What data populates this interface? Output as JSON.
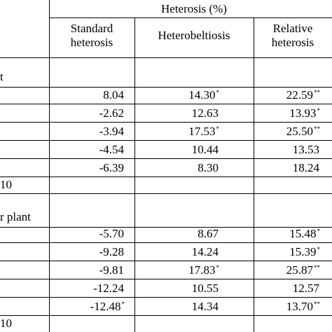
{
  "header": {
    "group": "Heterosis (%)",
    "col1": [
      "Standard",
      "heterosis"
    ],
    "col2": "Heterobeltiosis",
    "col3": [
      "Relative",
      "heterosis"
    ]
  },
  "sections": [
    {
      "label": "t",
      "rows": [
        {
          "c1": "8.04",
          "c1s": "",
          "c2": "14.30",
          "c2s": "*",
          "c3": "22.59",
          "c3s": "**"
        },
        {
          "c1": "-2.62",
          "c1s": "",
          "c2": "12.63",
          "c2s": "",
          "c3": "13.93",
          "c3s": "*"
        },
        {
          "c1": "-3.94",
          "c1s": "",
          "c2": "17.53",
          "c2s": "*",
          "c3": "25.50",
          "c3s": "**"
        },
        {
          "c1": "-4.54",
          "c1s": "",
          "c2": "10.44",
          "c2s": "",
          "c3": "13.53",
          "c3s": ""
        },
        {
          "c1": "-6.39",
          "c1s": "",
          "c2": "8.30",
          "c2s": "",
          "c3": "18.24",
          "c3s": ""
        }
      ],
      "footer": "10"
    },
    {
      "label": "r plant",
      "rows": [
        {
          "c1": "-5.70",
          "c1s": "",
          "c2": "8.67",
          "c2s": "",
          "c3": "15.48",
          "c3s": "*"
        },
        {
          "c1": "-9.28",
          "c1s": "",
          "c2": "14.24",
          "c2s": "",
          "c3": "15.39",
          "c3s": "*"
        },
        {
          "c1": "-9.81",
          "c1s": "",
          "c2": "17.83",
          "c2s": "*",
          "c3": "25.87",
          "c3s": "**"
        },
        {
          "c1": "-12.24",
          "c1s": "",
          "c2": "10.55",
          "c2s": "",
          "c3": "12.57",
          "c3s": ""
        },
        {
          "c1": "-12.48",
          "c1s": "*",
          "c2": "14.34",
          "c2s": "",
          "c3": "13.70",
          "c3s": "**"
        }
      ],
      "footer": "10"
    }
  ]
}
